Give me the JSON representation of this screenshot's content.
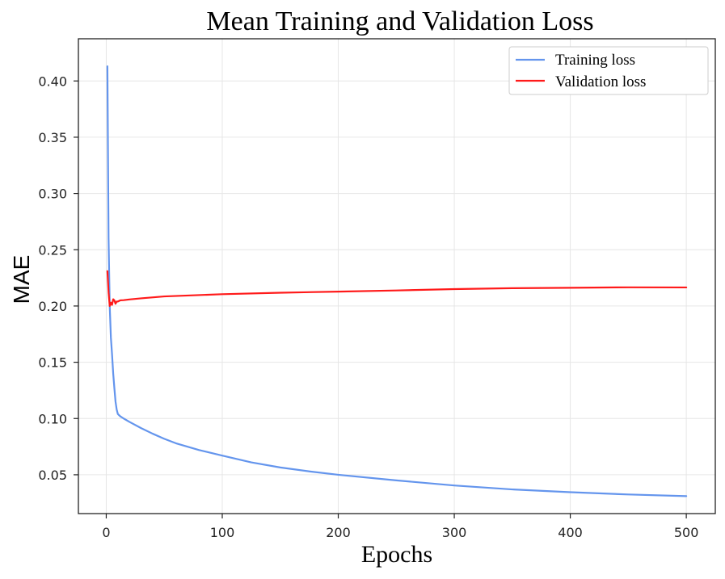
{
  "chart_data": {
    "type": "line",
    "title": "Mean Training and Validation Loss",
    "xlabel": "Epochs",
    "ylabel": "MAE",
    "xlim": [
      -24,
      525
    ],
    "ylim": [
      0.0155,
      0.4375
    ],
    "x_ticks": [
      0,
      100,
      200,
      300,
      400,
      500
    ],
    "y_ticks": [
      0.05,
      0.1,
      0.15,
      0.2,
      0.25,
      0.3,
      0.35,
      0.4
    ],
    "y_tick_labels": [
      "0.05",
      "0.10",
      "0.15",
      "0.20",
      "0.25",
      "0.30",
      "0.35",
      "0.40"
    ],
    "grid": true,
    "legend_position": "top-right",
    "series": [
      {
        "name": "Training loss",
        "color": "#6495ED",
        "x": [
          1,
          2,
          3,
          4,
          5,
          6,
          7,
          8,
          9,
          10,
          12,
          15,
          20,
          30,
          40,
          50,
          60,
          80,
          100,
          125,
          150,
          175,
          200,
          250,
          300,
          350,
          400,
          450,
          500
        ],
        "y": [
          0.413,
          0.26,
          0.2,
          0.172,
          0.157,
          0.14,
          0.127,
          0.115,
          0.108,
          0.104,
          0.102,
          0.1,
          0.097,
          0.0915,
          0.0865,
          0.082,
          0.078,
          0.072,
          0.067,
          0.061,
          0.0565,
          0.053,
          0.05,
          0.045,
          0.0405,
          0.037,
          0.0345,
          0.0325,
          0.031
        ]
      },
      {
        "name": "Validation loss",
        "color": "#FF1A1A",
        "x": [
          1,
          2,
          3,
          4,
          5,
          6,
          7,
          8,
          9,
          10,
          12,
          15,
          20,
          30,
          50,
          75,
          100,
          150,
          200,
          250,
          300,
          350,
          400,
          450,
          500
        ],
        "y": [
          0.231,
          0.212,
          0.2,
          0.203,
          0.201,
          0.206,
          0.205,
          0.202,
          0.204,
          0.204,
          0.205,
          0.2052,
          0.2058,
          0.2068,
          0.2085,
          0.2095,
          0.2105,
          0.2118,
          0.2128,
          0.2138,
          0.215,
          0.2158,
          0.2162,
          0.2166,
          0.2165
        ]
      }
    ]
  }
}
